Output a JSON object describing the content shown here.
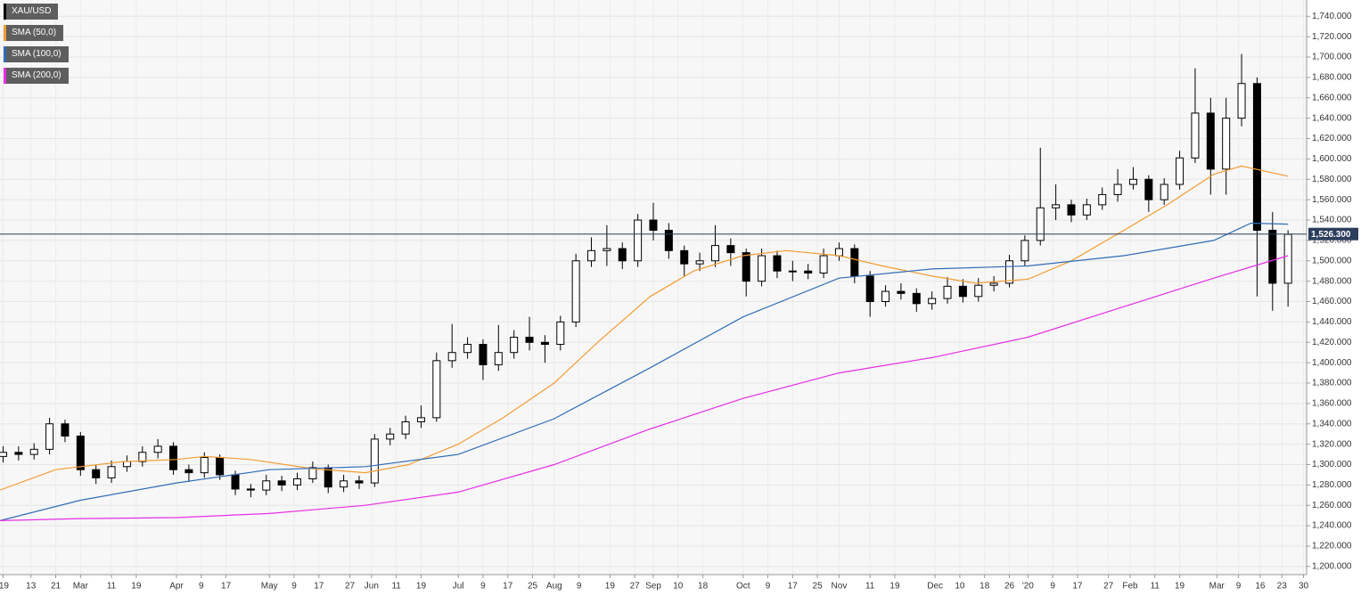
{
  "chart_data": {
    "type": "candlestick",
    "grid": true,
    "xlim": [
      "2019-02-03",
      "2020-03-31"
    ],
    "xticks": [
      {
        "value": "2019-02-04",
        "label": "'19"
      },
      {
        "value": "2019-02-13",
        "label": "13"
      },
      {
        "value": "2019-02-21",
        "label": "21"
      },
      {
        "value": "2019-03-01",
        "label": "Mar"
      },
      {
        "value": "2019-03-11",
        "label": "11"
      },
      {
        "value": "2019-03-19",
        "label": "19"
      },
      {
        "value": "2019-04-01",
        "label": "Apr"
      },
      {
        "value": "2019-04-09",
        "label": "9"
      },
      {
        "value": "2019-04-17",
        "label": "17"
      },
      {
        "value": "2019-05-01",
        "label": "May"
      },
      {
        "value": "2019-05-09",
        "label": "9"
      },
      {
        "value": "2019-05-17",
        "label": "17"
      },
      {
        "value": "2019-05-27",
        "label": "27"
      },
      {
        "value": "2019-06-03",
        "label": "Jun"
      },
      {
        "value": "2019-06-11",
        "label": "11"
      },
      {
        "value": "2019-06-19",
        "label": "19"
      },
      {
        "value": "2019-07-01",
        "label": "Jul"
      },
      {
        "value": "2019-07-09",
        "label": "9"
      },
      {
        "value": "2019-07-17",
        "label": "17"
      },
      {
        "value": "2019-07-25",
        "label": "25"
      },
      {
        "value": "2019-08-01",
        "label": "Aug"
      },
      {
        "value": "2019-08-09",
        "label": "9"
      },
      {
        "value": "2019-08-19",
        "label": "19"
      },
      {
        "value": "2019-08-27",
        "label": "27"
      },
      {
        "value": "2019-09-02",
        "label": "Sep"
      },
      {
        "value": "2019-09-10",
        "label": "10"
      },
      {
        "value": "2019-09-18",
        "label": "18"
      },
      {
        "value": "2019-10-01",
        "label": "Oct"
      },
      {
        "value": "2019-10-09",
        "label": "9"
      },
      {
        "value": "2019-10-17",
        "label": "17"
      },
      {
        "value": "2019-10-25",
        "label": "25"
      },
      {
        "value": "2019-11-01",
        "label": "Nov"
      },
      {
        "value": "2019-11-11",
        "label": "11"
      },
      {
        "value": "2019-11-19",
        "label": "19"
      },
      {
        "value": "2019-12-02",
        "label": "Dec"
      },
      {
        "value": "2019-12-10",
        "label": "10"
      },
      {
        "value": "2019-12-18",
        "label": "18"
      },
      {
        "value": "2019-12-26",
        "label": "26"
      },
      {
        "value": "2020-01-01",
        "label": "'20"
      },
      {
        "value": "2020-01-09",
        "label": "9"
      },
      {
        "value": "2020-01-17",
        "label": "17"
      },
      {
        "value": "2020-01-27",
        "label": "27"
      },
      {
        "value": "2020-02-03",
        "label": "Feb"
      },
      {
        "value": "2020-02-11",
        "label": "11"
      },
      {
        "value": "2020-02-19",
        "label": "19"
      },
      {
        "value": "2020-03-02",
        "label": "Mar"
      },
      {
        "value": "2020-03-09",
        "label": "9"
      },
      {
        "value": "2020-03-16",
        "label": "16"
      },
      {
        "value": "2020-03-23",
        "label": "23"
      },
      {
        "value": "2020-03-30",
        "label": "30"
      }
    ],
    "ylim": [
      1192,
      1756
    ],
    "yticks": [
      {
        "value": 1200,
        "label": "1,200.000"
      },
      {
        "value": 1220,
        "label": "1,220.000"
      },
      {
        "value": 1240,
        "label": "1,240.000"
      },
      {
        "value": 1260,
        "label": "1,260.000"
      },
      {
        "value": 1280,
        "label": "1,280.000"
      },
      {
        "value": 1300,
        "label": "1,300.000"
      },
      {
        "value": 1320,
        "label": "1,320.000"
      },
      {
        "value": 1340,
        "label": "1,340.000"
      },
      {
        "value": 1360,
        "label": "1,360.000"
      },
      {
        "value": 1380,
        "label": "1,380.000"
      },
      {
        "value": 1400,
        "label": "1,400.000"
      },
      {
        "value": 1420,
        "label": "1,420.000"
      },
      {
        "value": 1440,
        "label": "1,440.000"
      },
      {
        "value": 1460,
        "label": "1,460.000"
      },
      {
        "value": 1480,
        "label": "1,480.000"
      },
      {
        "value": 1500,
        "label": "1,500.000"
      },
      {
        "value": 1520,
        "label": "1,520.000"
      },
      {
        "value": 1540,
        "label": "1,540.000"
      },
      {
        "value": 1560,
        "label": "1,560.000"
      },
      {
        "value": 1580,
        "label": "1,580.000"
      },
      {
        "value": 1600,
        "label": "1,600.000"
      },
      {
        "value": 1620,
        "label": "1,620.000"
      },
      {
        "value": 1640,
        "label": "1,640.000"
      },
      {
        "value": 1660,
        "label": "1,660.000"
      },
      {
        "value": 1680,
        "label": "1,680.000"
      },
      {
        "value": 1700,
        "label": "1,700.000"
      },
      {
        "value": 1720,
        "label": "1,720.000"
      },
      {
        "value": 1740,
        "label": "1,740.000"
      }
    ],
    "last_price": {
      "value": 1526.3,
      "label": "1,526.300",
      "color": "#2c3e5c"
    },
    "series": [
      {
        "name": "XAU/USD",
        "color": "#000000",
        "x": [
          "2019-02-04",
          "2019-02-09",
          "2019-02-14",
          "2019-02-19",
          "2019-02-24",
          "2019-03-01",
          "2019-03-06",
          "2019-03-11",
          "2019-03-16",
          "2019-03-21",
          "2019-03-26",
          "2019-03-31",
          "2019-04-05",
          "2019-04-10",
          "2019-04-15",
          "2019-04-20",
          "2019-04-25",
          "2019-04-30",
          "2019-05-05",
          "2019-05-10",
          "2019-05-15",
          "2019-05-20",
          "2019-05-25",
          "2019-05-30",
          "2019-06-04",
          "2019-06-09",
          "2019-06-14",
          "2019-06-19",
          "2019-06-24",
          "2019-06-29",
          "2019-07-04",
          "2019-07-09",
          "2019-07-14",
          "2019-07-19",
          "2019-07-24",
          "2019-07-29",
          "2019-08-03",
          "2019-08-08",
          "2019-08-13",
          "2019-08-18",
          "2019-08-23",
          "2019-08-28",
          "2019-09-02",
          "2019-09-07",
          "2019-09-12",
          "2019-09-17",
          "2019-09-22",
          "2019-09-27",
          "2019-10-02",
          "2019-10-07",
          "2019-10-12",
          "2019-10-17",
          "2019-10-22",
          "2019-10-27",
          "2019-11-01",
          "2019-11-06",
          "2019-11-11",
          "2019-11-16",
          "2019-11-21",
          "2019-11-26",
          "2019-12-01",
          "2019-12-06",
          "2019-12-11",
          "2019-12-16",
          "2019-12-21",
          "2019-12-26",
          "2019-12-31",
          "2020-01-05",
          "2020-01-10",
          "2020-01-15",
          "2020-01-20",
          "2020-01-25",
          "2020-01-30",
          "2020-02-04",
          "2020-02-09",
          "2020-02-14",
          "2020-02-19",
          "2020-02-24",
          "2020-02-29",
          "2020-03-05",
          "2020-03-10",
          "2020-03-15",
          "2020-03-20",
          "2020-03-25"
        ],
        "open": [
          1308,
          1312,
          1310,
          1315,
          1340,
          1328,
          1295,
          1287,
          1298,
          1303,
          1312,
          1318,
          1295,
          1292,
          1307,
          1290,
          1276,
          1275,
          1284,
          1280,
          1286,
          1297,
          1278,
          1284,
          1282,
          1325,
          1330,
          1342,
          1346,
          1402,
          1410,
          1418,
          1398,
          1410,
          1425,
          1420,
          1418,
          1440,
          1500,
          1510,
          1512,
          1500,
          1540,
          1530,
          1510,
          1497,
          1500,
          1515,
          1508,
          1480,
          1505,
          1490,
          1490,
          1488,
          1505,
          1512,
          1485,
          1460,
          1470,
          1468,
          1458,
          1463,
          1475,
          1465,
          1476,
          1478,
          1500,
          1520,
          1552,
          1555,
          1545,
          1555,
          1565,
          1575,
          1580,
          1560,
          1575,
          1601,
          1645,
          1590,
          1640,
          1674,
          1530,
          1478
        ],
        "high": [
          1318,
          1318,
          1321,
          1346,
          1344,
          1332,
          1300,
          1304,
          1309,
          1318,
          1325,
          1322,
          1300,
          1312,
          1310,
          1294,
          1281,
          1290,
          1289,
          1292,
          1303,
          1300,
          1290,
          1289,
          1330,
          1336,
          1348,
          1358,
          1410,
          1438,
          1425,
          1423,
          1437,
          1432,
          1445,
          1427,
          1446,
          1507,
          1523,
          1535,
          1518,
          1546,
          1557,
          1537,
          1515,
          1508,
          1535,
          1522,
          1512,
          1512,
          1510,
          1500,
          1497,
          1512,
          1518,
          1516,
          1490,
          1476,
          1478,
          1473,
          1470,
          1484,
          1482,
          1483,
          1485,
          1506,
          1525,
          1611,
          1575,
          1560,
          1561,
          1572,
          1590,
          1592,
          1584,
          1581,
          1608,
          1689,
          1660,
          1660,
          1703,
          1680,
          1548,
          1530
        ],
        "low": [
          1302,
          1304,
          1305,
          1310,
          1322,
          1289,
          1281,
          1282,
          1293,
          1298,
          1306,
          1290,
          1283,
          1287,
          1285,
          1270,
          1268,
          1270,
          1274,
          1275,
          1282,
          1272,
          1273,
          1276,
          1278,
          1319,
          1325,
          1336,
          1342,
          1395,
          1404,
          1383,
          1392,
          1404,
          1412,
          1400,
          1412,
          1435,
          1494,
          1495,
          1492,
          1494,
          1520,
          1502,
          1485,
          1490,
          1494,
          1495,
          1465,
          1475,
          1483,
          1480,
          1482,
          1483,
          1500,
          1478,
          1445,
          1455,
          1462,
          1450,
          1452,
          1458,
          1459,
          1460,
          1470,
          1474,
          1495,
          1515,
          1540,
          1538,
          1540,
          1550,
          1558,
          1570,
          1548,
          1555,
          1570,
          1596,
          1565,
          1565,
          1632,
          1465,
          1451,
          1455
        ],
        "close": [
          1312,
          1310,
          1315,
          1340,
          1328,
          1295,
          1287,
          1298,
          1303,
          1312,
          1318,
          1295,
          1292,
          1307,
          1290,
          1276,
          1275,
          1284,
          1280,
          1286,
          1297,
          1278,
          1284,
          1282,
          1325,
          1330,
          1342,
          1346,
          1402,
          1410,
          1418,
          1398,
          1410,
          1425,
          1420,
          1418,
          1440,
          1500,
          1510,
          1512,
          1500,
          1540,
          1530,
          1510,
          1497,
          1500,
          1515,
          1508,
          1480,
          1505,
          1490,
          1490,
          1488,
          1505,
          1512,
          1485,
          1460,
          1470,
          1468,
          1458,
          1463,
          1475,
          1465,
          1476,
          1478,
          1500,
          1520,
          1552,
          1555,
          1545,
          1555,
          1565,
          1575,
          1580,
          1560,
          1575,
          1601,
          1645,
          1590,
          1640,
          1674,
          1530,
          1478,
          1526
        ]
      },
      {
        "name": "SMA (50,0)",
        "color": "#f39c34",
        "x": [
          "2019-02-03",
          "2019-02-21",
          "2019-03-15",
          "2019-04-01",
          "2019-04-10",
          "2019-04-25",
          "2019-05-15",
          "2019-06-01",
          "2019-06-15",
          "2019-07-01",
          "2019-07-15",
          "2019-08-01",
          "2019-08-15",
          "2019-09-01",
          "2019-09-15",
          "2019-10-01",
          "2019-10-15",
          "2019-11-01",
          "2019-11-15",
          "2019-12-01",
          "2019-12-15",
          "2020-01-01",
          "2020-01-15",
          "2020-02-01",
          "2020-02-15",
          "2020-03-01",
          "2020-03-10",
          "2020-03-25"
        ],
        "values": [
          1275,
          1295,
          1303,
          1305,
          1308,
          1305,
          1296,
          1292,
          1300,
          1320,
          1345,
          1380,
          1420,
          1465,
          1490,
          1505,
          1510,
          1505,
          1495,
          1485,
          1478,
          1482,
          1500,
          1530,
          1555,
          1585,
          1593,
          1583
        ]
      },
      {
        "name": "SMA (100,0)",
        "color": "#2f6db5",
        "x": [
          "2019-02-03",
          "2019-03-01",
          "2019-04-01",
          "2019-05-01",
          "2019-06-01",
          "2019-07-01",
          "2019-08-01",
          "2019-09-01",
          "2019-10-01",
          "2019-11-01",
          "2019-12-01",
          "2020-01-01",
          "2020-02-01",
          "2020-03-01",
          "2020-03-13",
          "2020-03-25"
        ],
        "values": [
          1245,
          1265,
          1282,
          1295,
          1298,
          1310,
          1345,
          1395,
          1445,
          1483,
          1492,
          1495,
          1505,
          1520,
          1537,
          1536
        ]
      },
      {
        "name": "SMA (200,0)",
        "color": "#e62ee6",
        "x": [
          "2019-02-03",
          "2019-03-01",
          "2019-04-01",
          "2019-05-01",
          "2019-06-01",
          "2019-07-01",
          "2019-08-01",
          "2019-09-01",
          "2019-10-01",
          "2019-11-01",
          "2019-12-01",
          "2020-01-01",
          "2020-02-01",
          "2020-03-01",
          "2020-03-25"
        ],
        "values": [
          1245,
          1247,
          1248,
          1252,
          1260,
          1273,
          1300,
          1335,
          1365,
          1390,
          1405,
          1425,
          1455,
          1483,
          1505
        ]
      }
    ]
  }
}
